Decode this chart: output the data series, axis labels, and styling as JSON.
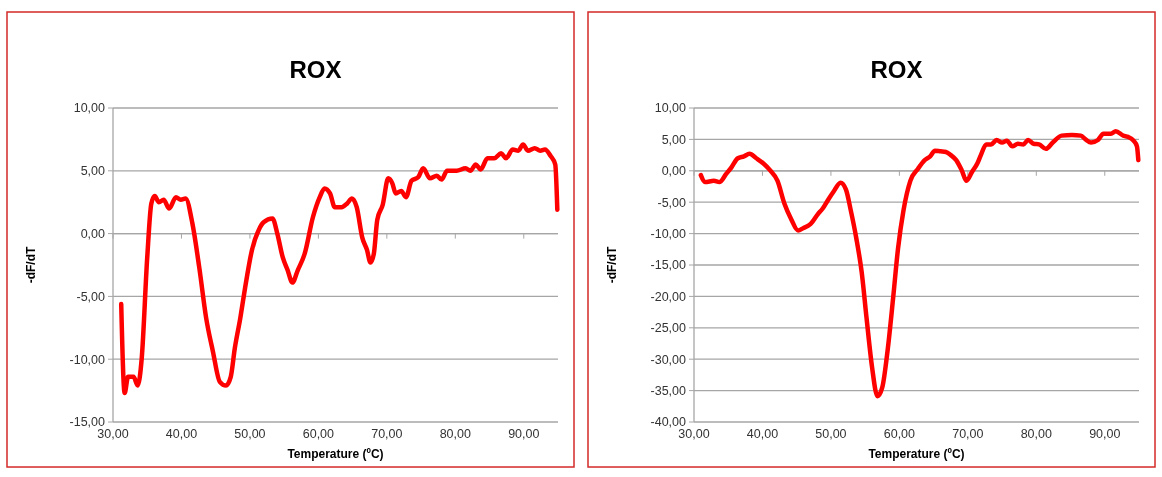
{
  "chart_data": [
    {
      "type": "line",
      "title": "ROX",
      "xlabel": "Temperature (ºC)",
      "ylabel": "-dF/dT",
      "grid": "y",
      "xlim": [
        30,
        95
      ],
      "ylim": [
        -15,
        10
      ],
      "xticks": [
        {
          "value": 30,
          "label": "30,00"
        },
        {
          "value": 40,
          "label": "40,00"
        },
        {
          "value": 50,
          "label": "50,00"
        },
        {
          "value": 60,
          "label": "60,00"
        },
        {
          "value": 70,
          "label": "70,00"
        },
        {
          "value": 80,
          "label": "80,00"
        },
        {
          "value": 90,
          "label": "90,00"
        }
      ],
      "yticks": [
        {
          "value": -15,
          "label": "-15,00"
        },
        {
          "value": -10,
          "label": "-10,00"
        },
        {
          "value": -5,
          "label": "-5,00"
        },
        {
          "value": 0,
          "label": "0,00"
        },
        {
          "value": 5,
          "label": "5,00"
        },
        {
          "value": 10,
          "label": "10,00"
        }
      ],
      "series": [
        {
          "color": "#ff0000",
          "x": [
            31.2,
            31.7,
            32.2,
            33,
            33.6,
            34.2,
            35,
            35.6,
            36.1,
            36.7,
            37.4,
            38.2,
            39.2,
            39.9,
            40.6,
            41.6,
            42.6,
            43.6,
            44.6,
            45.6,
            46.5,
            47.2,
            47.8,
            48.6,
            49.3,
            50.3,
            51.3,
            52,
            53.3,
            54,
            54.8,
            55.5,
            56.2,
            57,
            58,
            59.2,
            60.2,
            60.9,
            61.7,
            62.4,
            63.4,
            64.2,
            64.9,
            65.6,
            66.4,
            67.1,
            67.6,
            68.1,
            68.6,
            69.4,
            70.2,
            70.8,
            71.3,
            72.1,
            72.8,
            73.6,
            74.6,
            75.3,
            76.3,
            77.3,
            78,
            78.8,
            80.2,
            81.5,
            82.2,
            83,
            83.7,
            84.7,
            85.7,
            86.7,
            87.4,
            88.4,
            89.2,
            89.9,
            90.6,
            91.6,
            92.4,
            93.1,
            93.9,
            94.6,
            94.9
          ],
          "values": [
            -5.6,
            -12.7,
            -11.4,
            -11.4,
            -12.1,
            -9.9,
            -1.9,
            2.4,
            3,
            2.5,
            2.7,
            2,
            2.9,
            2.7,
            2.8,
            0.8,
            -2.7,
            -6.7,
            -9.4,
            -11.8,
            -12.1,
            -11.4,
            -9.1,
            -6.7,
            -4.3,
            -1.3,
            0.3,
            0.9,
            1.2,
            0,
            -1.9,
            -2.9,
            -3.9,
            -2.9,
            -1.6,
            1.3,
            2.9,
            3.6,
            3.2,
            2.1,
            2.1,
            2.4,
            2.8,
            2.1,
            -0.3,
            -1.3,
            -2.3,
            -1.6,
            1.1,
            2.3,
            4.4,
            4,
            3.2,
            3.4,
            2.9,
            4.2,
            4.5,
            5.2,
            4.4,
            4.6,
            4.3,
            5,
            5,
            5.2,
            5,
            5.5,
            5.1,
            6,
            6,
            6.4,
            6,
            6.7,
            6.6,
            7.1,
            6.6,
            6.8,
            6.6,
            6.7,
            6.2,
            5.5,
            1.9
          ]
        }
      ]
    },
    {
      "type": "line",
      "title": "ROX",
      "xlabel": "Temperature (ºC)",
      "ylabel": "-dF/dT",
      "grid": "y",
      "xlim": [
        30,
        95
      ],
      "ylim": [
        -40,
        10
      ],
      "xticks": [
        {
          "value": 30,
          "label": "30,00"
        },
        {
          "value": 40,
          "label": "40,00"
        },
        {
          "value": 50,
          "label": "50,00"
        },
        {
          "value": 60,
          "label": "60,00"
        },
        {
          "value": 70,
          "label": "70,00"
        },
        {
          "value": 80,
          "label": "80,00"
        },
        {
          "value": 90,
          "label": "90,00"
        }
      ],
      "yticks": [
        {
          "value": -40,
          "label": "-40,00"
        },
        {
          "value": -35,
          "label": "-35,00"
        },
        {
          "value": -30,
          "label": "-30,00"
        },
        {
          "value": -25,
          "label": "-25,00"
        },
        {
          "value": -20,
          "label": "-20,00"
        },
        {
          "value": -15,
          "label": "-15,00"
        },
        {
          "value": -10,
          "label": "-10,00"
        },
        {
          "value": -5,
          "label": "-5,00"
        },
        {
          "value": 0,
          "label": "0,00"
        },
        {
          "value": 5,
          "label": "5,00"
        },
        {
          "value": 10,
          "label": "10,00"
        }
      ],
      "series": [
        {
          "color": "#ff0000",
          "x": [
            31,
            31.6,
            32.9,
            33.7,
            34.7,
            35.5,
            36.4,
            37.3,
            38.1,
            39.1,
            40.1,
            41.1,
            42.2,
            43.2,
            44.2,
            45.2,
            46,
            47,
            48.1,
            48.8,
            49.6,
            50.4,
            51.4,
            52.2,
            52.9,
            53.7,
            54.5,
            55.2,
            56,
            56.8,
            57.5,
            58.3,
            59.1,
            59.8,
            60.6,
            61.6,
            62.7,
            63.7,
            64.5,
            65.2,
            66,
            66.8,
            67.5,
            68.3,
            69.1,
            69.8,
            70.6,
            71.4,
            71.9,
            72.7,
            73.4,
            74.2,
            75,
            75.7,
            76.5,
            77.3,
            78.1,
            78.8,
            79.6,
            80.4,
            81.4,
            82.4,
            83.7,
            85.2,
            86.5,
            87.2,
            88,
            89,
            89.8,
            90.9,
            91.6,
            92.7,
            93.4,
            94.2,
            94.7,
            94.9
          ],
          "values": [
            -0.7,
            -1.8,
            -1.6,
            -1.8,
            -0.5,
            0.6,
            2,
            2.3,
            2.7,
            2,
            1.2,
            0.1,
            -1.6,
            -5.2,
            -7.7,
            -9.5,
            -9.1,
            -8.5,
            -6.9,
            -6,
            -4.6,
            -3.3,
            -1.9,
            -3,
            -6.3,
            -10.7,
            -16.2,
            -23.4,
            -31.2,
            -35.9,
            -34.5,
            -28.4,
            -20.1,
            -12.4,
            -6.3,
            -1.6,
            0.3,
            1.7,
            2.3,
            3.2,
            3.1,
            3,
            2.5,
            1.7,
            0.1,
            -1.6,
            -0.2,
            1.2,
            2.5,
            4.2,
            4.2,
            4.9,
            4.5,
            4.8,
            3.9,
            4.3,
            4.2,
            4.9,
            4.3,
            4.2,
            3.5,
            4.5,
            5.6,
            5.7,
            5.6,
            5,
            4.5,
            4.9,
            5.9,
            5.9,
            6.3,
            5.6,
            5.4,
            4.8,
            3.9,
            1.7
          ]
        }
      ]
    }
  ]
}
